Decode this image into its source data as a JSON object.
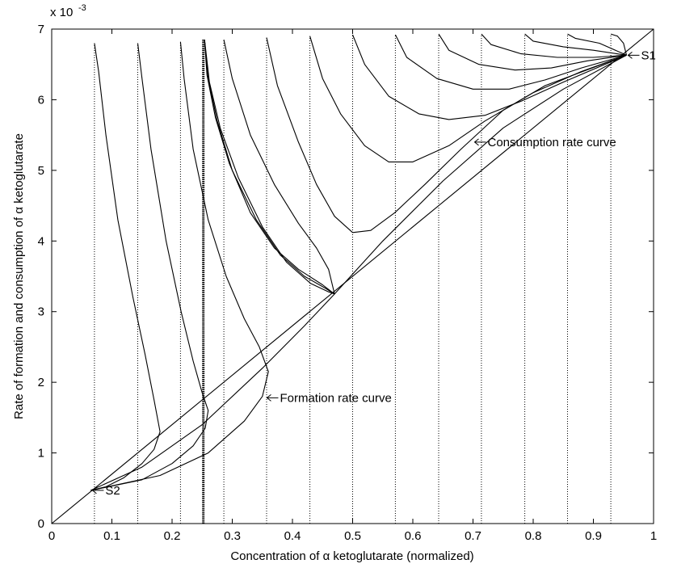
{
  "chart_data": {
    "type": "line",
    "xlabel": "Concentration of α ketoglutarate (normalized)",
    "ylabel": "Rate of formation and consumption of α ketoglutarate",
    "y_exponent_base": "x 10",
    "y_exponent_power": "-3",
    "xlim": [
      0,
      1
    ],
    "ylim": [
      0,
      7
    ],
    "x_ticks": [
      "0",
      "0.1",
      "0.2",
      "0.3",
      "0.4",
      "0.5",
      "0.6",
      "0.7",
      "0.8",
      "0.9",
      "1"
    ],
    "y_ticks": [
      "0",
      "1",
      "2",
      "3",
      "4",
      "5",
      "6",
      "7"
    ],
    "grid": false,
    "annotations": [
      {
        "text": "S1",
        "x": 0.955,
        "y": 6.63
      },
      {
        "text": "S2",
        "x": 0.065,
        "y": 0.47
      },
      {
        "text": "Consumption rate curve",
        "x": 0.7,
        "y": 5.4
      },
      {
        "text": "Formation rate curve",
        "x": 0.355,
        "y": 1.78
      }
    ],
    "series": [
      {
        "style": "solid",
        "points": [
          [
            0,
            0
          ],
          [
            1,
            7
          ]
        ]
      },
      {
        "style": "solid",
        "points": [
          [
            0.065,
            0.47
          ],
          [
            0.15,
            0.8
          ],
          [
            0.25,
            1.4
          ],
          [
            0.35,
            2.2
          ],
          [
            0.42,
            2.8
          ],
          [
            0.47,
            3.25
          ],
          [
            0.55,
            4.0
          ],
          [
            0.65,
            4.85
          ],
          [
            0.75,
            5.6
          ],
          [
            0.85,
            6.15
          ],
          [
            0.955,
            6.63
          ]
        ]
      },
      {
        "style": "solid",
        "points": [
          [
            0.071,
            6.8
          ],
          [
            0.078,
            6.4
          ],
          [
            0.09,
            5.5
          ],
          [
            0.11,
            4.3
          ],
          [
            0.135,
            3.2
          ],
          [
            0.155,
            2.4
          ],
          [
            0.17,
            1.75
          ],
          [
            0.18,
            1.3
          ],
          [
            0.17,
            1.05
          ],
          [
            0.15,
            0.85
          ],
          [
            0.12,
            0.65
          ],
          [
            0.09,
            0.52
          ],
          [
            0.065,
            0.47
          ]
        ]
      },
      {
        "style": "solid",
        "points": [
          [
            0.143,
            6.8
          ],
          [
            0.15,
            6.3
          ],
          [
            0.165,
            5.3
          ],
          [
            0.19,
            4.0
          ],
          [
            0.215,
            3.0
          ],
          [
            0.235,
            2.3
          ],
          [
            0.25,
            1.85
          ],
          [
            0.26,
            1.6
          ],
          [
            0.255,
            1.35
          ],
          [
            0.235,
            1.1
          ],
          [
            0.2,
            0.85
          ],
          [
            0.15,
            0.62
          ],
          [
            0.065,
            0.47
          ]
        ]
      },
      {
        "style": "solid",
        "points": [
          [
            0.214,
            6.82
          ],
          [
            0.22,
            6.3
          ],
          [
            0.235,
            5.3
          ],
          [
            0.26,
            4.3
          ],
          [
            0.29,
            3.5
          ],
          [
            0.32,
            2.9
          ],
          [
            0.345,
            2.5
          ],
          [
            0.36,
            2.15
          ],
          [
            0.35,
            1.8
          ],
          [
            0.32,
            1.45
          ],
          [
            0.26,
            1.0
          ],
          [
            0.18,
            0.68
          ],
          [
            0.065,
            0.47
          ]
        ]
      },
      {
        "style": "solid",
        "points": [
          [
            0.254,
            6.85
          ],
          [
            0.26,
            6.3
          ],
          [
            0.275,
            5.7
          ],
          [
            0.3,
            5.0
          ],
          [
            0.34,
            4.3
          ],
          [
            0.38,
            3.8
          ],
          [
            0.42,
            3.5
          ],
          [
            0.455,
            3.33
          ],
          [
            0.47,
            3.25
          ]
        ]
      },
      {
        "style": "solid",
        "points": [
          [
            0.254,
            6.85
          ],
          [
            0.262,
            6.25
          ],
          [
            0.28,
            5.6
          ],
          [
            0.31,
            4.9
          ],
          [
            0.35,
            4.2
          ],
          [
            0.39,
            3.7
          ],
          [
            0.43,
            3.4
          ],
          [
            0.46,
            3.28
          ],
          [
            0.47,
            3.25
          ]
        ]
      },
      {
        "style": "solid",
        "points": [
          [
            0.254,
            6.85
          ],
          [
            0.258,
            6.35
          ],
          [
            0.272,
            5.75
          ],
          [
            0.295,
            5.1
          ],
          [
            0.33,
            4.4
          ],
          [
            0.37,
            3.9
          ],
          [
            0.41,
            3.6
          ],
          [
            0.45,
            3.38
          ],
          [
            0.47,
            3.25
          ]
        ]
      },
      {
        "style": "solid",
        "points": [
          [
            0.286,
            6.85
          ],
          [
            0.3,
            6.3
          ],
          [
            0.33,
            5.5
          ],
          [
            0.37,
            4.8
          ],
          [
            0.41,
            4.25
          ],
          [
            0.44,
            3.9
          ],
          [
            0.46,
            3.6
          ],
          [
            0.47,
            3.25
          ]
        ]
      },
      {
        "style": "solid",
        "points": [
          [
            0.357,
            6.88
          ],
          [
            0.375,
            6.2
          ],
          [
            0.41,
            5.4
          ],
          [
            0.44,
            4.8
          ],
          [
            0.47,
            4.35
          ],
          [
            0.5,
            4.12
          ],
          [
            0.53,
            4.15
          ],
          [
            0.57,
            4.4
          ],
          [
            0.62,
            4.8
          ],
          [
            0.68,
            5.3
          ],
          [
            0.75,
            5.85
          ],
          [
            0.82,
            6.2
          ],
          [
            0.955,
            6.63
          ]
        ]
      },
      {
        "style": "solid",
        "points": [
          [
            0.429,
            6.9
          ],
          [
            0.45,
            6.3
          ],
          [
            0.48,
            5.8
          ],
          [
            0.52,
            5.35
          ],
          [
            0.56,
            5.12
          ],
          [
            0.6,
            5.12
          ],
          [
            0.66,
            5.35
          ],
          [
            0.72,
            5.7
          ],
          [
            0.8,
            6.1
          ],
          [
            0.88,
            6.4
          ],
          [
            0.955,
            6.63
          ]
        ]
      },
      {
        "style": "solid",
        "points": [
          [
            0.5,
            6.92
          ],
          [
            0.52,
            6.5
          ],
          [
            0.56,
            6.05
          ],
          [
            0.61,
            5.8
          ],
          [
            0.66,
            5.72
          ],
          [
            0.72,
            5.78
          ],
          [
            0.78,
            5.98
          ],
          [
            0.85,
            6.25
          ],
          [
            0.955,
            6.63
          ]
        ]
      },
      {
        "style": "solid",
        "points": [
          [
            0.571,
            6.92
          ],
          [
            0.59,
            6.6
          ],
          [
            0.64,
            6.3
          ],
          [
            0.7,
            6.15
          ],
          [
            0.76,
            6.15
          ],
          [
            0.82,
            6.28
          ],
          [
            0.88,
            6.45
          ],
          [
            0.955,
            6.63
          ]
        ]
      },
      {
        "style": "solid",
        "points": [
          [
            0.643,
            6.93
          ],
          [
            0.66,
            6.7
          ],
          [
            0.71,
            6.5
          ],
          [
            0.77,
            6.42
          ],
          [
            0.83,
            6.45
          ],
          [
            0.89,
            6.55
          ],
          [
            0.955,
            6.63
          ]
        ]
      },
      {
        "style": "solid",
        "points": [
          [
            0.714,
            6.93
          ],
          [
            0.73,
            6.78
          ],
          [
            0.78,
            6.65
          ],
          [
            0.84,
            6.6
          ],
          [
            0.9,
            6.6
          ],
          [
            0.955,
            6.63
          ]
        ]
      },
      {
        "style": "solid",
        "points": [
          [
            0.786,
            6.93
          ],
          [
            0.8,
            6.83
          ],
          [
            0.85,
            6.75
          ],
          [
            0.9,
            6.7
          ],
          [
            0.955,
            6.63
          ]
        ]
      },
      {
        "style": "solid",
        "points": [
          [
            0.857,
            6.93
          ],
          [
            0.87,
            6.87
          ],
          [
            0.91,
            6.8
          ],
          [
            0.955,
            6.63
          ]
        ]
      },
      {
        "style": "solid",
        "points": [
          [
            0.929,
            6.93
          ],
          [
            0.94,
            6.9
          ],
          [
            0.95,
            6.8
          ],
          [
            0.955,
            6.63
          ]
        ]
      },
      {
        "style": "dotted",
        "points": [
          [
            0.071,
            0
          ],
          [
            0.071,
            6.8
          ]
        ]
      },
      {
        "style": "dotted",
        "points": [
          [
            0.143,
            0
          ],
          [
            0.143,
            6.8
          ]
        ]
      },
      {
        "style": "dotted",
        "points": [
          [
            0.214,
            0
          ],
          [
            0.214,
            6.82
          ]
        ]
      },
      {
        "style": "dotted",
        "points": [
          [
            0.286,
            0
          ],
          [
            0.286,
            6.85
          ]
        ]
      },
      {
        "style": "dotted",
        "points": [
          [
            0.357,
            0
          ],
          [
            0.357,
            6.88
          ]
        ]
      },
      {
        "style": "dotted",
        "points": [
          [
            0.429,
            0
          ],
          [
            0.429,
            6.9
          ]
        ]
      },
      {
        "style": "dotted",
        "points": [
          [
            0.5,
            0
          ],
          [
            0.5,
            6.92
          ]
        ]
      },
      {
        "style": "dotted",
        "points": [
          [
            0.571,
            0
          ],
          [
            0.571,
            6.92
          ]
        ]
      },
      {
        "style": "dotted",
        "points": [
          [
            0.643,
            0
          ],
          [
            0.643,
            6.93
          ]
        ]
      },
      {
        "style": "dotted",
        "points": [
          [
            0.714,
            0
          ],
          [
            0.714,
            6.93
          ]
        ]
      },
      {
        "style": "dotted",
        "points": [
          [
            0.786,
            0
          ],
          [
            0.786,
            6.93
          ]
        ]
      },
      {
        "style": "dotted",
        "points": [
          [
            0.857,
            0
          ],
          [
            0.857,
            6.93
          ]
        ]
      },
      {
        "style": "dotted",
        "points": [
          [
            0.929,
            0
          ],
          [
            0.929,
            6.93
          ]
        ]
      },
      {
        "style": "bold",
        "points": [
          [
            0.252,
            0
          ],
          [
            0.252,
            6.85
          ]
        ]
      }
    ]
  }
}
